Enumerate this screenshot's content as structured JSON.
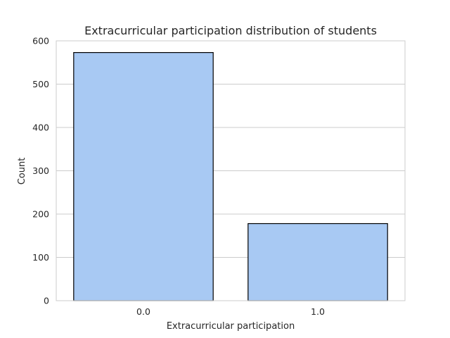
{
  "chart_data": {
    "type": "bar",
    "title": "Extracurricular participation distribution of students",
    "xlabel": "Extracurricular participation",
    "ylabel": "Count",
    "categories": [
      "0.0",
      "1.0"
    ],
    "values": [
      573,
      178
    ],
    "ylim": [
      0,
      600
    ],
    "yticks": [
      0,
      100,
      200,
      300,
      400,
      500,
      600
    ],
    "grid": true,
    "bar_color": "#a8c9f3",
    "bar_edge_color": "#000000",
    "grid_color": "#cccccc",
    "spine_color": "#cccccc",
    "text_color": "#262626"
  }
}
